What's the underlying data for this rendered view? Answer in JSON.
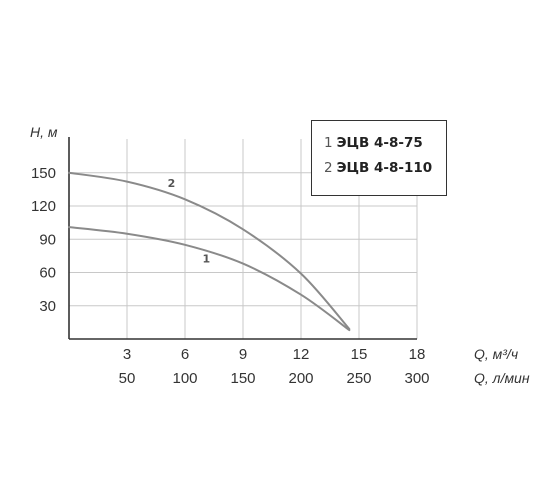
{
  "chart_data": {
    "type": "line",
    "title": "",
    "ylabel": "H, м",
    "xlabel": "Q, м³/ч",
    "xlabel_secondary": "Q, л/мин",
    "xlim": [
      0,
      18
    ],
    "ylim": [
      0,
      165
    ],
    "x_ticks": [
      3,
      6,
      9,
      12,
      15,
      18
    ],
    "x_ticks_secondary": [
      "50",
      "100",
      "150",
      "200",
      "250",
      "300"
    ],
    "y_ticks": [
      30,
      60,
      90,
      120,
      150
    ],
    "grid": true,
    "legend_position": "top-right",
    "series": [
      {
        "name": "ЭЦВ 4-8-75",
        "number": "1",
        "color": "#8a8a8a",
        "x": [
          0,
          3,
          6,
          9,
          12,
          14.5
        ],
        "y": [
          101,
          95,
          85,
          68,
          40,
          8
        ]
      },
      {
        "name": "ЭЦВ 4-8-110",
        "number": "2",
        "color": "#8a8a8a",
        "x": [
          0,
          3,
          6,
          9,
          12,
          14.5
        ],
        "y": [
          150,
          142,
          126,
          99,
          59,
          9
        ]
      }
    ],
    "annotations": [
      {
        "text": "1",
        "x": 7.1,
        "y": 69
      },
      {
        "text": "2",
        "x": 5.3,
        "y": 137
      }
    ]
  }
}
